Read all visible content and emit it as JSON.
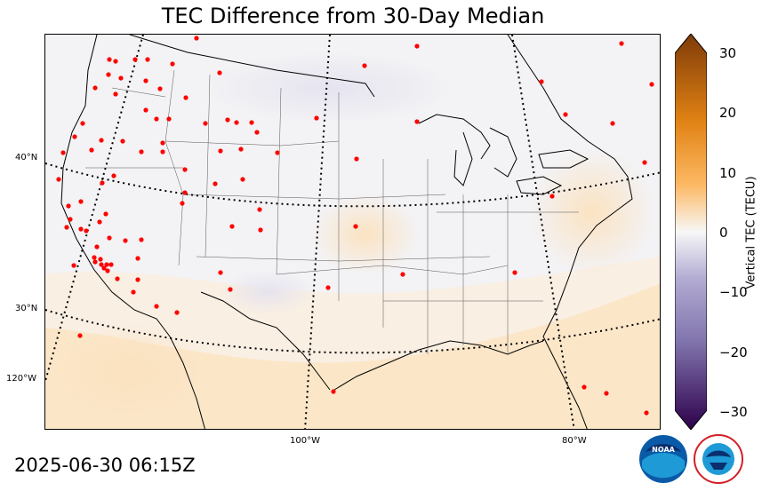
{
  "title": "TEC Difference from 30-Day Median",
  "timestamp": "2025-06-30 06:15Z",
  "map": {
    "lat_labels": [
      "40°N",
      "30°N"
    ],
    "lon_labels": [
      "120°W",
      "100°W",
      "80°W"
    ],
    "station_count": "approx 105 stations (red dots)"
  },
  "colorbar": {
    "label": "Vertical TEC (TECU)",
    "ticks": [
      "30",
      "20",
      "10",
      "0",
      "−10",
      "−20",
      "−30"
    ],
    "range": [
      -30,
      30
    ],
    "colors": {
      "max": "#7f3b08",
      "high": "#e08214",
      "mid_high": "#fdb863",
      "zero": "#f7f7f7",
      "mid_low": "#b2abd2",
      "low": "#8073ac",
      "min": "#2d004b"
    }
  },
  "colors": {
    "station": "#ff0000",
    "background": "#f4f2f2",
    "positive_shading": "#fbe6c8"
  },
  "logos": {
    "noaa_text": "NOAA",
    "nws_text": "NATIONAL WEATHER SERVICE"
  }
}
